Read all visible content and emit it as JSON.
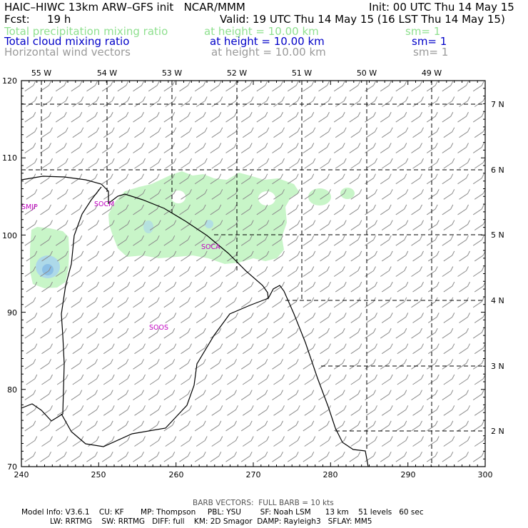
{
  "header": {
    "title_left": "HAIC–HIWC 13km ARW–GFS init   NCAR/MMM",
    "init": "Init: 00 UTC Thu 14 May 15",
    "fcst_label": "Fcst:",
    "fcst_value": "19 h",
    "valid": "Valid: 19 UTC Thu 14 May 15 (16 LST Thu 14 May 15)"
  },
  "fields": [
    {
      "name": "Total precipitation mixing ratio",
      "level": "at height = 10.00 km",
      "sm": "sm= 1",
      "color": "#8fe08f"
    },
    {
      "name": "Total cloud mixing ratio",
      "level": "at height = 10.00 km",
      "sm": "sm= 1",
      "color": "#0000c8"
    },
    {
      "name": "Horizontal wind vectors",
      "level": "at height = 10.00 km",
      "sm": "sm= 1",
      "color": "#9a9a9a"
    }
  ],
  "map": {
    "x_ticks": [
      "240",
      "250",
      "260",
      "270",
      "280",
      "290",
      "300"
    ],
    "y_ticks": [
      "70",
      "80",
      "90",
      "100",
      "110",
      "120"
    ],
    "lon_labels": [
      "55 W",
      "54 W",
      "53 W",
      "52 W",
      "51 W",
      "50 W",
      "49 W"
    ],
    "lat_labels": [
      "2 N",
      "3 N",
      "4 N",
      "5 N",
      "6 N",
      "7 N"
    ],
    "stations": [
      "SMJP",
      "SOCM",
      "SOCA",
      "SOOS"
    ],
    "colors": {
      "precip": "#c8f5c8",
      "cloud": "#a8d4ef",
      "coast": "#000000",
      "barb": "#8c8c8c",
      "station": "#c000c0"
    }
  },
  "footer": {
    "barb_note": "BARB VECTORS:  FULL BARB = 10 kts",
    "line1": "Model Info: V3.6.1    CU: KF       MP: Thompson     PBL: YSU        SF: Noah LSM      13 km    51 levels   60 sec",
    "line2": "LW: RRTMG    SW: RRTMG   DIFF: full    KM: 2D Smagor  DAMP: Rayleigh3   SFLAY: MM5"
  }
}
